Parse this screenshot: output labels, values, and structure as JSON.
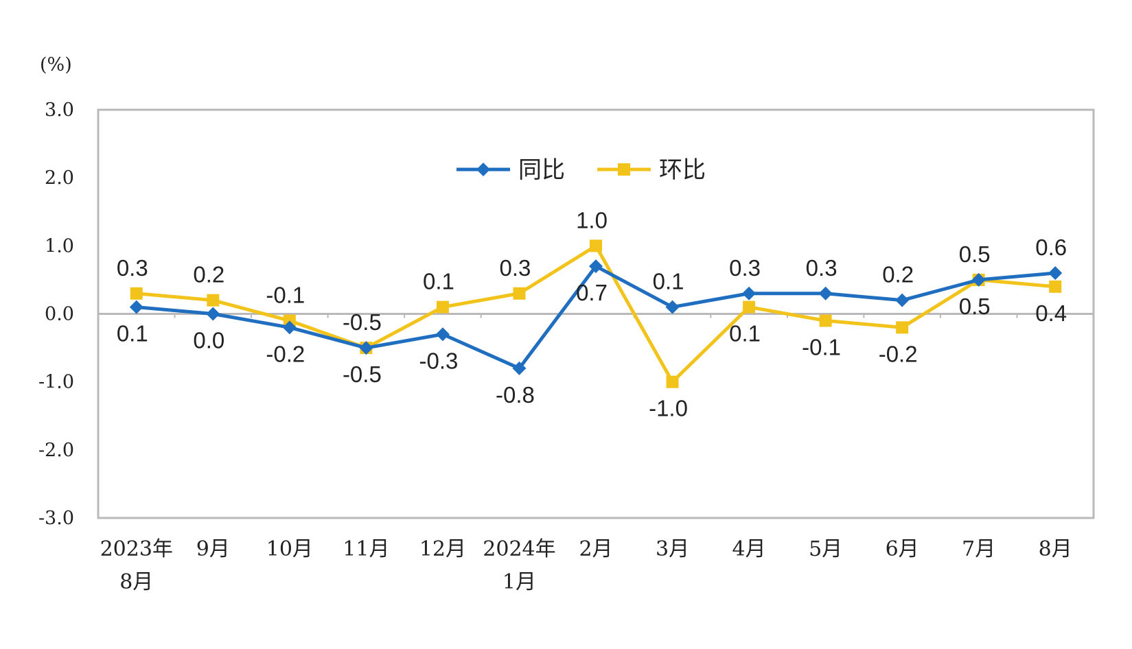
{
  "chart_data": {
    "type": "line",
    "unit_label": "(%)",
    "ylim": [
      -3.0,
      3.0
    ],
    "y_ticks": [
      "3.0",
      "2.0",
      "1.0",
      "0.0",
      "-1.0",
      "-2.0",
      "-3.0"
    ],
    "categories": [
      [
        "2023年",
        "8月"
      ],
      [
        "9月"
      ],
      [
        "10月"
      ],
      [
        "11月"
      ],
      [
        "12月"
      ],
      [
        "2024年",
        "1月"
      ],
      [
        "2月"
      ],
      [
        "3月"
      ],
      [
        "4月"
      ],
      [
        "5月"
      ],
      [
        "6月"
      ],
      [
        "7月"
      ],
      [
        "8月"
      ]
    ],
    "series": [
      {
        "name": "同比",
        "color": "#1f6ebf",
        "marker": "diamond",
        "values": [
          0.1,
          0.0,
          -0.2,
          -0.5,
          -0.3,
          -0.8,
          0.7,
          0.1,
          0.3,
          0.3,
          0.2,
          0.5,
          0.6
        ],
        "labels": [
          "0.1",
          "0.0",
          "-0.2",
          "-0.5",
          "-0.3",
          "-0.8",
          "0.7",
          "0.1",
          "0.3",
          "0.3",
          "0.2",
          "0.5",
          "0.6"
        ]
      },
      {
        "name": "环比",
        "color": "#f2c31b",
        "marker": "square",
        "values": [
          0.3,
          0.2,
          -0.1,
          -0.5,
          0.1,
          0.3,
          1.0,
          -1.0,
          0.1,
          -0.1,
          -0.2,
          0.5,
          0.4
        ],
        "labels": [
          "0.3",
          "0.2",
          "-0.1",
          "-0.5",
          "0.1",
          "0.3",
          "1.0",
          "-1.0",
          "0.1",
          "-0.1",
          "-0.2",
          "0.5",
          "0.4"
        ]
      }
    ],
    "legend_position": "top-center",
    "grid": false
  }
}
